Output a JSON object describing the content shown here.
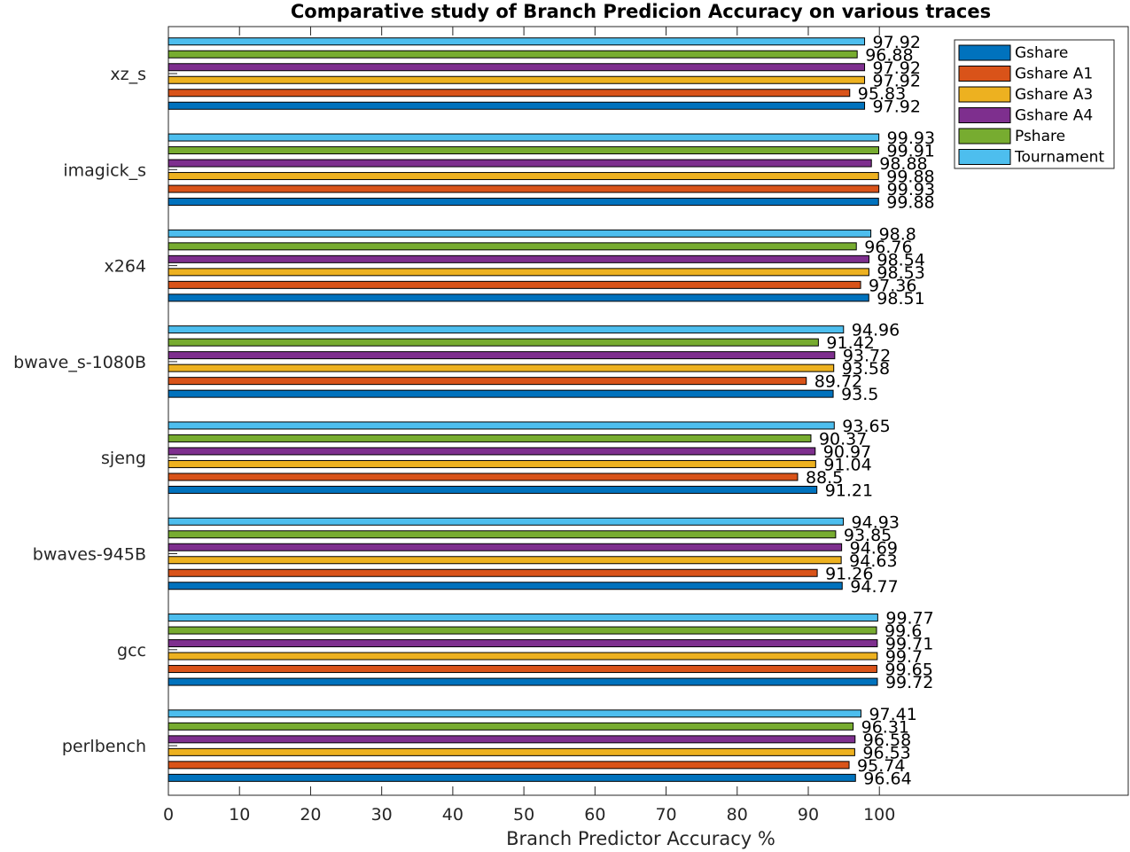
{
  "chart_data": {
    "type": "bar",
    "orientation": "horizontal",
    "title": "Comparative study of Branch Predicion Accuracy on various traces",
    "xlabel": "Branch Predictor Accuracy %",
    "ylabel": "",
    "xlim": [
      0,
      135
    ],
    "xticks": [
      0,
      10,
      20,
      30,
      40,
      50,
      60,
      70,
      80,
      90,
      100
    ],
    "grid": false,
    "legend_position": "top-right",
    "categories": [
      "xz_s",
      "imagick_s",
      "x264",
      "bwave_s-1080B",
      "sjeng",
      "bwaves-945B",
      "gcc",
      "perlbench"
    ],
    "series": [
      {
        "name": "Gshare",
        "color": "#0072BD",
        "values": [
          97.92,
          99.88,
          98.51,
          93.5,
          91.21,
          94.77,
          99.72,
          96.64
        ]
      },
      {
        "name": "Gshare A1",
        "color": "#D95319",
        "values": [
          95.83,
          99.93,
          97.36,
          89.72,
          88.5,
          91.26,
          99.65,
          95.74
        ]
      },
      {
        "name": "Gshare A3",
        "color": "#EDB120",
        "values": [
          97.92,
          99.88,
          98.53,
          93.58,
          91.04,
          94.63,
          99.7,
          96.53
        ]
      },
      {
        "name": "Gshare A4",
        "color": "#7E2F8E",
        "values": [
          97.92,
          98.88,
          98.54,
          93.72,
          90.97,
          94.69,
          99.71,
          96.58
        ]
      },
      {
        "name": "Pshare",
        "color": "#77AC30",
        "values": [
          96.88,
          99.91,
          96.76,
          91.42,
          90.37,
          93.85,
          99.6,
          96.31
        ]
      },
      {
        "name": "Tournament",
        "color": "#4DBEEE",
        "values": [
          97.92,
          99.93,
          98.8,
          94.96,
          93.65,
          94.93,
          99.77,
          97.41
        ]
      }
    ]
  }
}
